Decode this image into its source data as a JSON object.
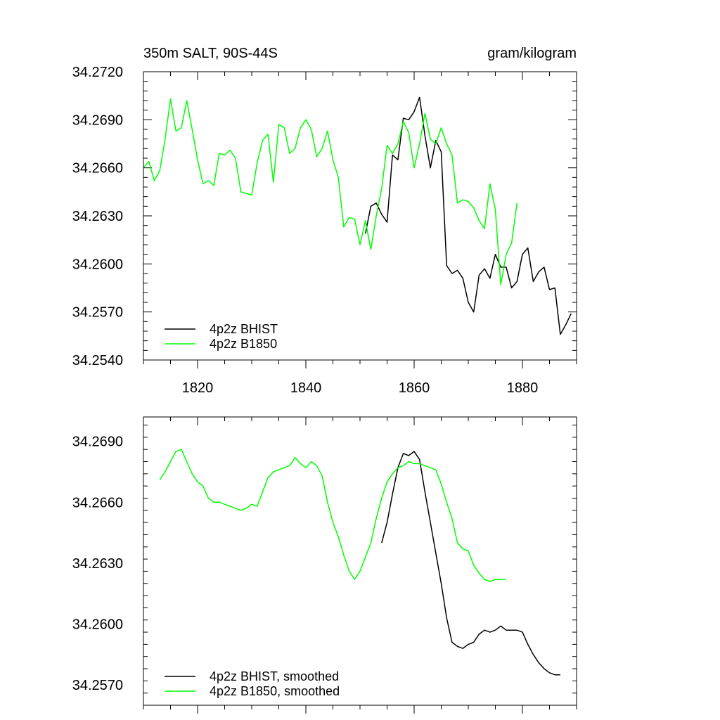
{
  "chart_data": [
    {
      "type": "line",
      "title": "350m SALT, 90S-44S",
      "units": "gram/kilogram",
      "xlabel": "",
      "ylabel": "",
      "xlim": [
        1810,
        1890
      ],
      "ylim": [
        34.254,
        34.272
      ],
      "yticks": [
        "34.2540",
        "34.2570",
        "34.2600",
        "34.2630",
        "34.2660",
        "34.2690",
        "34.2720"
      ],
      "xticks": [
        "1820",
        "1840",
        "1860",
        "1880"
      ],
      "legend": "bottom-left",
      "series": [
        {
          "name": "4p2z BHIST",
          "color": "#000000",
          "x": [
            1851,
            1852,
            1853,
            1854,
            1855,
            1856,
            1857,
            1858,
            1859,
            1860,
            1861,
            1862,
            1863,
            1864,
            1865,
            1866,
            1867,
            1868,
            1869,
            1870,
            1871,
            1872,
            1873,
            1874,
            1875,
            1876,
            1877,
            1878,
            1879,
            1880,
            1881,
            1882,
            1883,
            1884,
            1885,
            1886,
            1887,
            1888,
            1889
          ],
          "y": [
            34.2619,
            34.2636,
            34.2638,
            34.2631,
            34.2626,
            34.2668,
            34.2665,
            34.2691,
            34.269,
            34.2695,
            34.2704,
            34.268,
            34.266,
            34.2677,
            34.267,
            34.2599,
            34.2594,
            34.2596,
            34.2591,
            34.2576,
            34.257,
            34.2593,
            34.2597,
            34.2591,
            34.2606,
            34.2598,
            34.2598,
            34.2585,
            34.2589,
            34.2606,
            34.261,
            34.2589,
            34.2595,
            34.2598,
            34.2584,
            34.2585,
            34.2556,
            34.2562,
            34.2569
          ]
        },
        {
          "name": "4p2z B1850",
          "color": "#00ff00",
          "x": [
            1810,
            1811,
            1812,
            1813,
            1814,
            1815,
            1816,
            1817,
            1818,
            1819,
            1820,
            1821,
            1822,
            1823,
            1824,
            1825,
            1826,
            1827,
            1828,
            1829,
            1830,
            1831,
            1832,
            1833,
            1834,
            1835,
            1836,
            1837,
            1838,
            1839,
            1840,
            1841,
            1842,
            1843,
            1844,
            1845,
            1846,
            1847,
            1848,
            1849,
            1850,
            1851,
            1852,
            1853,
            1854,
            1855,
            1856,
            1857,
            1858,
            1859,
            1860,
            1861,
            1862,
            1863,
            1864,
            1865,
            1866,
            1867,
            1868,
            1869,
            1870,
            1871,
            1872,
            1873,
            1874,
            1875,
            1876,
            1877,
            1878,
            1879
          ],
          "y": [
            34.266,
            34.2664,
            34.2652,
            34.2658,
            34.2678,
            34.2703,
            34.2683,
            34.2685,
            34.2702,
            34.2684,
            34.2665,
            34.265,
            34.2652,
            34.2649,
            34.2669,
            34.2668,
            34.2671,
            34.2666,
            34.2645,
            34.2644,
            34.2643,
            34.2663,
            34.2677,
            34.2681,
            34.2651,
            34.2687,
            34.2685,
            34.2669,
            34.2672,
            34.2685,
            34.269,
            34.2684,
            34.2667,
            34.2672,
            34.2683,
            34.2665,
            34.2654,
            34.2623,
            34.2629,
            34.2628,
            34.2612,
            34.2627,
            34.2609,
            34.263,
            34.2647,
            34.2674,
            34.2669,
            34.2675,
            34.2689,
            34.2682,
            34.266,
            34.2675,
            34.2694,
            34.2678,
            34.2675,
            34.2685,
            34.2675,
            34.2668,
            34.2638,
            34.264,
            34.2639,
            34.2635,
            34.2627,
            34.2622,
            34.265,
            34.2634,
            34.2587,
            34.2606,
            34.2613,
            34.2638
          ]
        }
      ]
    },
    {
      "type": "line",
      "title": "",
      "xlabel": "",
      "ylabel": "",
      "xlim": [
        1810,
        1890
      ],
      "ylim": [
        34.256,
        34.2702
      ],
      "yticks": [
        "34.2570",
        "34.2600",
        "34.2630",
        "34.2660",
        "34.2690"
      ],
      "xticks": [],
      "legend": "bottom-left",
      "series": [
        {
          "name": "4p2z BHIST, smoothed",
          "color": "#000000",
          "x": [
            1854,
            1855,
            1856,
            1857,
            1858,
            1859,
            1860,
            1861,
            1862,
            1863,
            1864,
            1865,
            1866,
            1867,
            1868,
            1869,
            1870,
            1871,
            1872,
            1873,
            1874,
            1875,
            1876,
            1877,
            1878,
            1879,
            1880,
            1881,
            1882,
            1883,
            1884,
            1885,
            1886,
            1887
          ],
          "y": [
            34.264,
            34.265,
            34.2664,
            34.2677,
            34.2684,
            34.2683,
            34.2685,
            34.2681,
            34.2665,
            34.265,
            34.2635,
            34.262,
            34.2603,
            34.2591,
            34.2589,
            34.2588,
            34.259,
            34.2591,
            34.2595,
            34.2597,
            34.2596,
            34.2597,
            34.2599,
            34.2597,
            34.2597,
            34.2597,
            34.2596,
            34.259,
            34.2585,
            34.2581,
            34.2578,
            34.2576,
            34.2575,
            34.2575
          ]
        },
        {
          "name": "4p2z B1850, smoothed",
          "color": "#00ff00",
          "x": [
            1813,
            1814,
            1815,
            1816,
            1817,
            1818,
            1819,
            1820,
            1821,
            1822,
            1823,
            1824,
            1825,
            1826,
            1827,
            1828,
            1829,
            1830,
            1831,
            1832,
            1833,
            1834,
            1835,
            1836,
            1837,
            1838,
            1839,
            1840,
            1841,
            1842,
            1843,
            1844,
            1845,
            1846,
            1847,
            1848,
            1849,
            1850,
            1851,
            1852,
            1853,
            1854,
            1855,
            1856,
            1857,
            1858,
            1859,
            1860,
            1861,
            1862,
            1863,
            1864,
            1865,
            1866,
            1867,
            1868,
            1869,
            1870,
            1871,
            1872,
            1873,
            1874,
            1875,
            1876,
            1877
          ],
          "y": [
            34.2671,
            34.2675,
            34.268,
            34.2685,
            34.2686,
            34.268,
            34.2674,
            34.267,
            34.2668,
            34.2662,
            34.266,
            34.266,
            34.2659,
            34.2658,
            34.2657,
            34.2656,
            34.2657,
            34.2659,
            34.2658,
            34.2665,
            34.2672,
            34.2675,
            34.2676,
            34.2677,
            34.2678,
            34.2682,
            34.2679,
            34.2677,
            34.268,
            34.2678,
            34.2673,
            34.266,
            34.265,
            34.2643,
            34.2634,
            34.2626,
            34.2622,
            34.2626,
            34.2633,
            34.264,
            34.2652,
            34.2662,
            34.267,
            34.2674,
            34.2677,
            34.2678,
            34.268,
            34.2679,
            34.2679,
            34.2678,
            34.2677,
            34.2676,
            34.2669,
            34.266,
            34.2652,
            34.264,
            34.2637,
            34.2636,
            34.2629,
            34.2625,
            34.2622,
            34.2621,
            34.2622,
            34.2622,
            34.2622
          ]
        }
      ]
    }
  ]
}
